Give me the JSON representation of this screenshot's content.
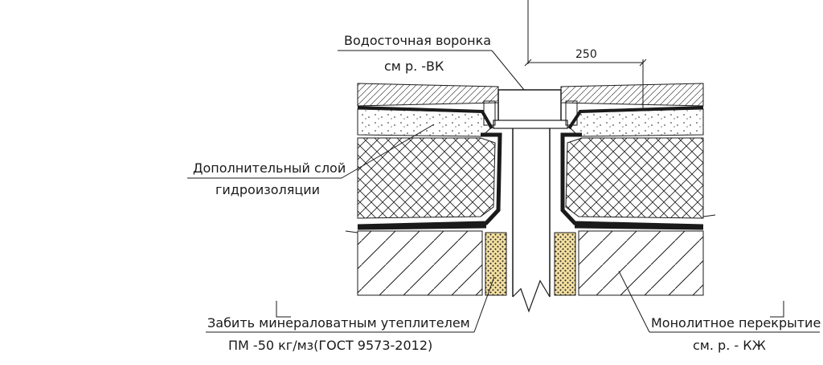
{
  "labels": {
    "funnel_line1": "Водосточная воронка",
    "funnel_line2": "см р. -ВК",
    "extra_layer_line1": "Дополнительный слой",
    "extra_layer_line2": "гидроизоляции",
    "fill_line1": "Забить минераловатным утеплителем",
    "fill_line2": "ПМ -50 кг/мз(ГОСТ 9573-2012)",
    "slab_line1": "Монолитное перекрытие",
    "slab_line2": "см. р. - КЖ"
  },
  "dimensions": {
    "flange_width": "250"
  },
  "colors": {
    "line": "#1a1a1a",
    "background": "#ffffff",
    "fill_dots": "#f3dfa0"
  }
}
